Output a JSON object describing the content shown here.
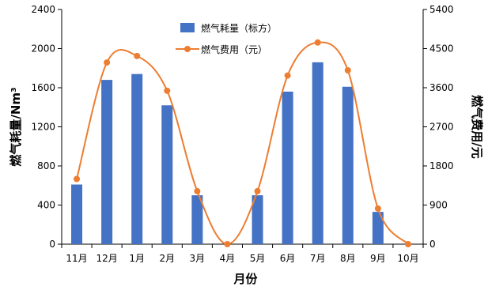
{
  "chart_data": {
    "type": "bar+line",
    "categories": [
      "11月",
      "12月",
      "1月",
      "2月",
      "3月",
      "4月",
      "5月",
      "6月",
      "7月",
      "8月",
      "9月",
      "10月"
    ],
    "series": [
      {
        "name": "燃气耗量（标方）",
        "type": "bar",
        "axis": "left",
        "color": "#4472C4",
        "values": [
          610,
          1680,
          1740,
          1420,
          500,
          0,
          500,
          1560,
          1860,
          1610,
          330,
          0
        ]
      },
      {
        "name": "燃气费用（元）",
        "type": "line",
        "smooth": true,
        "axis": "right",
        "color": "#ED7D31",
        "values": [
          1500,
          4180,
          4330,
          3530,
          1220,
          0,
          1220,
          3880,
          4640,
          4000,
          820,
          0
        ]
      }
    ],
    "xlabel": "月份",
    "ylabel_left": "燃气耗量/Nm³",
    "ylabel_right": "燃气费用/元",
    "ylim_left": [
      0,
      2400
    ],
    "yticks_left": [
      0,
      400,
      800,
      1200,
      1600,
      2000,
      2400
    ],
    "ylim_right": [
      0,
      5400
    ],
    "yticks_right": [
      0,
      900,
      1800,
      2700,
      3600,
      4500,
      5400
    ],
    "grid": false,
    "legend_position": "top-center"
  }
}
